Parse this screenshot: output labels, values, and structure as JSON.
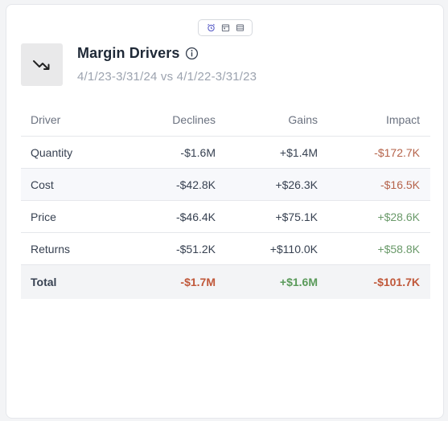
{
  "toolbar": {
    "icons": [
      "alarm-clock-icon",
      "calendar-icon",
      "window-icon"
    ],
    "accent": "#6366f1"
  },
  "header": {
    "icon": "trend-down-icon",
    "title": "Margin Drivers",
    "subtitle": "4/1/23-3/31/24 vs 4/1/22-3/31/23"
  },
  "table": {
    "columns": [
      "Driver",
      "Declines",
      "Gains",
      "Impact"
    ],
    "rows": [
      {
        "driver": "Quantity",
        "declines": "-$1.6M",
        "gains": "+$1.4M",
        "impact": "-$172.7K"
      },
      {
        "driver": "Cost",
        "declines": "-$42.8K",
        "gains": "+$26.3K",
        "impact": "-$16.5K"
      },
      {
        "driver": "Price",
        "declines": "-$46.4K",
        "gains": "+$75.1K",
        "impact": "+$28.6K"
      },
      {
        "driver": "Returns",
        "declines": "-$51.2K",
        "gains": "+$110.0K",
        "impact": "+$58.8K"
      }
    ],
    "total": {
      "driver": "Total",
      "declines": "-$1.7M",
      "gains": "+$1.6M",
      "impact": "-$101.7K"
    }
  },
  "colors": {
    "negative": "#b5634a",
    "positive": "#6a9a6a"
  }
}
